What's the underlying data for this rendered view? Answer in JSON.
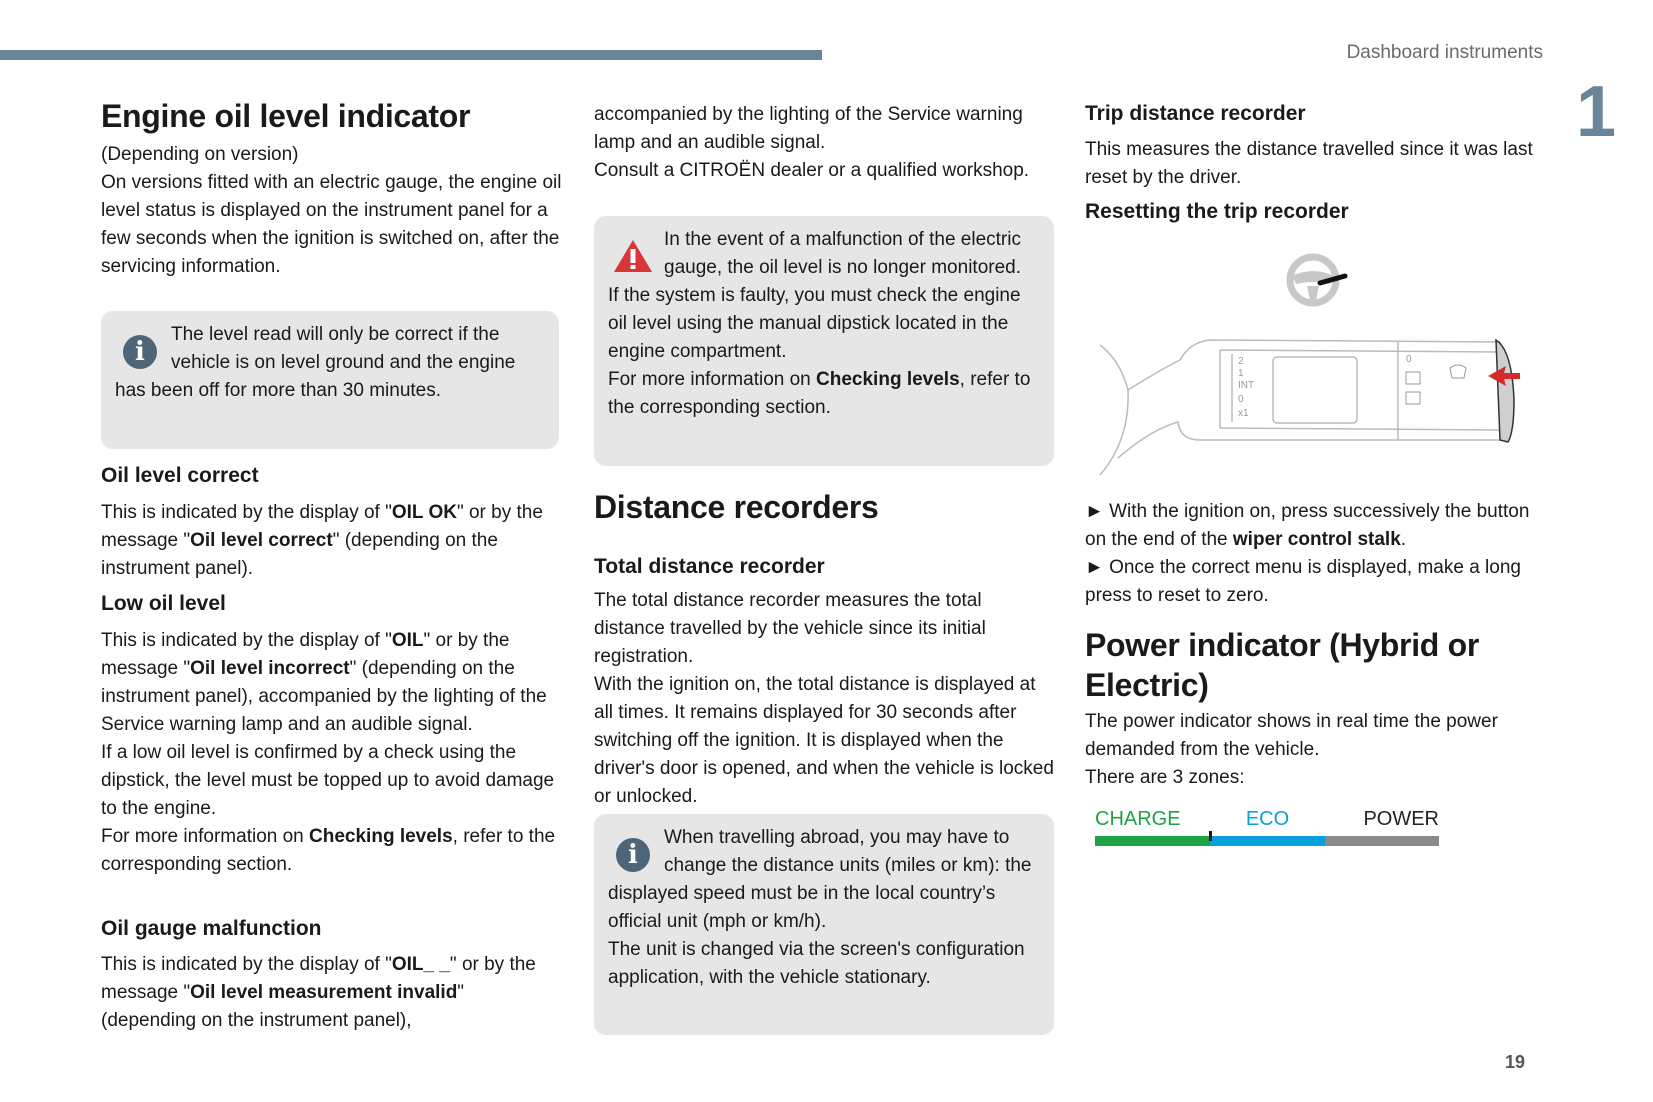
{
  "header": {
    "section": "Dashboard instruments",
    "chapter_number": "1",
    "accent_color": "#6a8598"
  },
  "page_number": "19",
  "col1": {
    "title": "Engine oil level indicator",
    "intro": [
      [
        {
          "t": "(Depending on version)"
        }
      ],
      [
        {
          "t": "On versions fitted with an electric gauge, the engine oil level status is displayed on the instrument panel for a few seconds when the ignition is switched on, after the servicing information."
        }
      ]
    ],
    "info_box": [
      [
        {
          "t": "The level read will only be correct if the vehicle is on level ground and the engine has been off for more than 30 minutes."
        }
      ]
    ],
    "correct_title": "Oil level correct",
    "correct": [
      [
        {
          "t": "This is indicated by the display of \""
        },
        {
          "t": "OIL OK",
          "b": 1
        },
        {
          "t": "\" or by the message \""
        },
        {
          "t": "Oil level correct",
          "b": 1
        },
        {
          "t": "\" (depending on the instrument panel)."
        }
      ]
    ],
    "low_title": "Low oil level",
    "low": [
      [
        {
          "t": "This is indicated by the display of \""
        },
        {
          "t": "OIL",
          "b": 1
        },
        {
          "t": "\" or by the message \""
        },
        {
          "t": "Oil level incorrect",
          "b": 1
        },
        {
          "t": "\" (depending on the instrument panel), accompanied by the lighting of the Service warning lamp and an audible signal."
        }
      ],
      [
        {
          "t": "If a low oil level is confirmed by a check using the dipstick, the level must be topped up to avoid damage to the engine."
        }
      ],
      [
        {
          "t": "For more information on "
        },
        {
          "t": "Checking levels",
          "b": 1
        },
        {
          "t": ", refer to the corresponding section."
        }
      ]
    ],
    "malf_title": "Oil gauge malfunction",
    "malf": [
      [
        {
          "t": "This is indicated by the display of \""
        },
        {
          "t": "OIL_ _",
          "b": 1
        },
        {
          "t": "\" or by the message \""
        },
        {
          "t": "Oil level measurement invalid",
          "b": 1
        },
        {
          "t": "\" (depending on the instrument panel),"
        }
      ]
    ]
  },
  "col2": {
    "cont": [
      [
        {
          "t": "accompanied by the lighting of the Service warning lamp and an audible signal."
        }
      ],
      [
        {
          "t": "Consult a CITROËN dealer or a qualified workshop."
        }
      ]
    ],
    "warn_box": [
      [
        {
          "t": "In the event of a malfunction of the electric gauge, the oil level is no longer monitored."
        }
      ],
      [
        {
          "t": "If the system is faulty, you must check the engine oil level using the manual dipstick located in the engine compartment."
        }
      ],
      [
        {
          "t": "For more information on "
        },
        {
          "t": "Checking levels",
          "b": 1
        },
        {
          "t": ", refer to the corresponding section."
        }
      ]
    ],
    "title": "Distance recorders",
    "total_title": "Total distance recorder",
    "total": [
      [
        {
          "t": "The total distance recorder measures the total distance travelled by the vehicle since its initial registration."
        }
      ],
      [
        {
          "t": "With the ignition on, the total distance is displayed at all times. It remains displayed for 30 seconds after switching off the ignition. It is displayed when the driver's door is opened, and when the vehicle is locked or unlocked."
        }
      ]
    ],
    "info_box": [
      [
        {
          "t": "When travelling abroad, you may have to change the distance units (miles or km): the displayed speed must be in the local country’s official unit (mph or km/h)."
        }
      ],
      [
        {
          "t": "The unit is changed via the screen's configuration application, with the vehicle stationary."
        }
      ]
    ]
  },
  "col3": {
    "trip_title": "Trip distance recorder",
    "trip": [
      [
        {
          "t": "This measures the distance travelled since it was last reset by the driver."
        }
      ]
    ],
    "reset_title": "Resetting the trip recorder",
    "illustration": {
      "labels": [
        "2",
        "1",
        "INT",
        "0",
        "x1",
        "0"
      ],
      "arrow_color": "#d42a2a"
    },
    "steps": [
      [
        {
          "t": "► With the ignition on, press successively the button on the end of the "
        },
        {
          "t": "wiper control stalk",
          "b": 1
        },
        {
          "t": "."
        }
      ],
      [
        {
          "t": "► Once the correct menu is displayed, make a long press to reset to zero."
        }
      ]
    ],
    "power_title": "Power indicator (Hybrid or Electric)",
    "power": [
      [
        {
          "t": "The power indicator shows in real time the power demanded from the vehicle."
        }
      ],
      [
        {
          "t": "There are 3 zones:"
        }
      ]
    ],
    "zones": [
      {
        "label": "CHARGE",
        "color": "#1fa246",
        "share": 0.335
      },
      {
        "label": "ECO",
        "color": "#0aa0dc",
        "share": 0.333
      },
      {
        "label": "POWER",
        "color": "#8a8a8a",
        "label_color": "#222222",
        "share": 0.332
      }
    ]
  }
}
